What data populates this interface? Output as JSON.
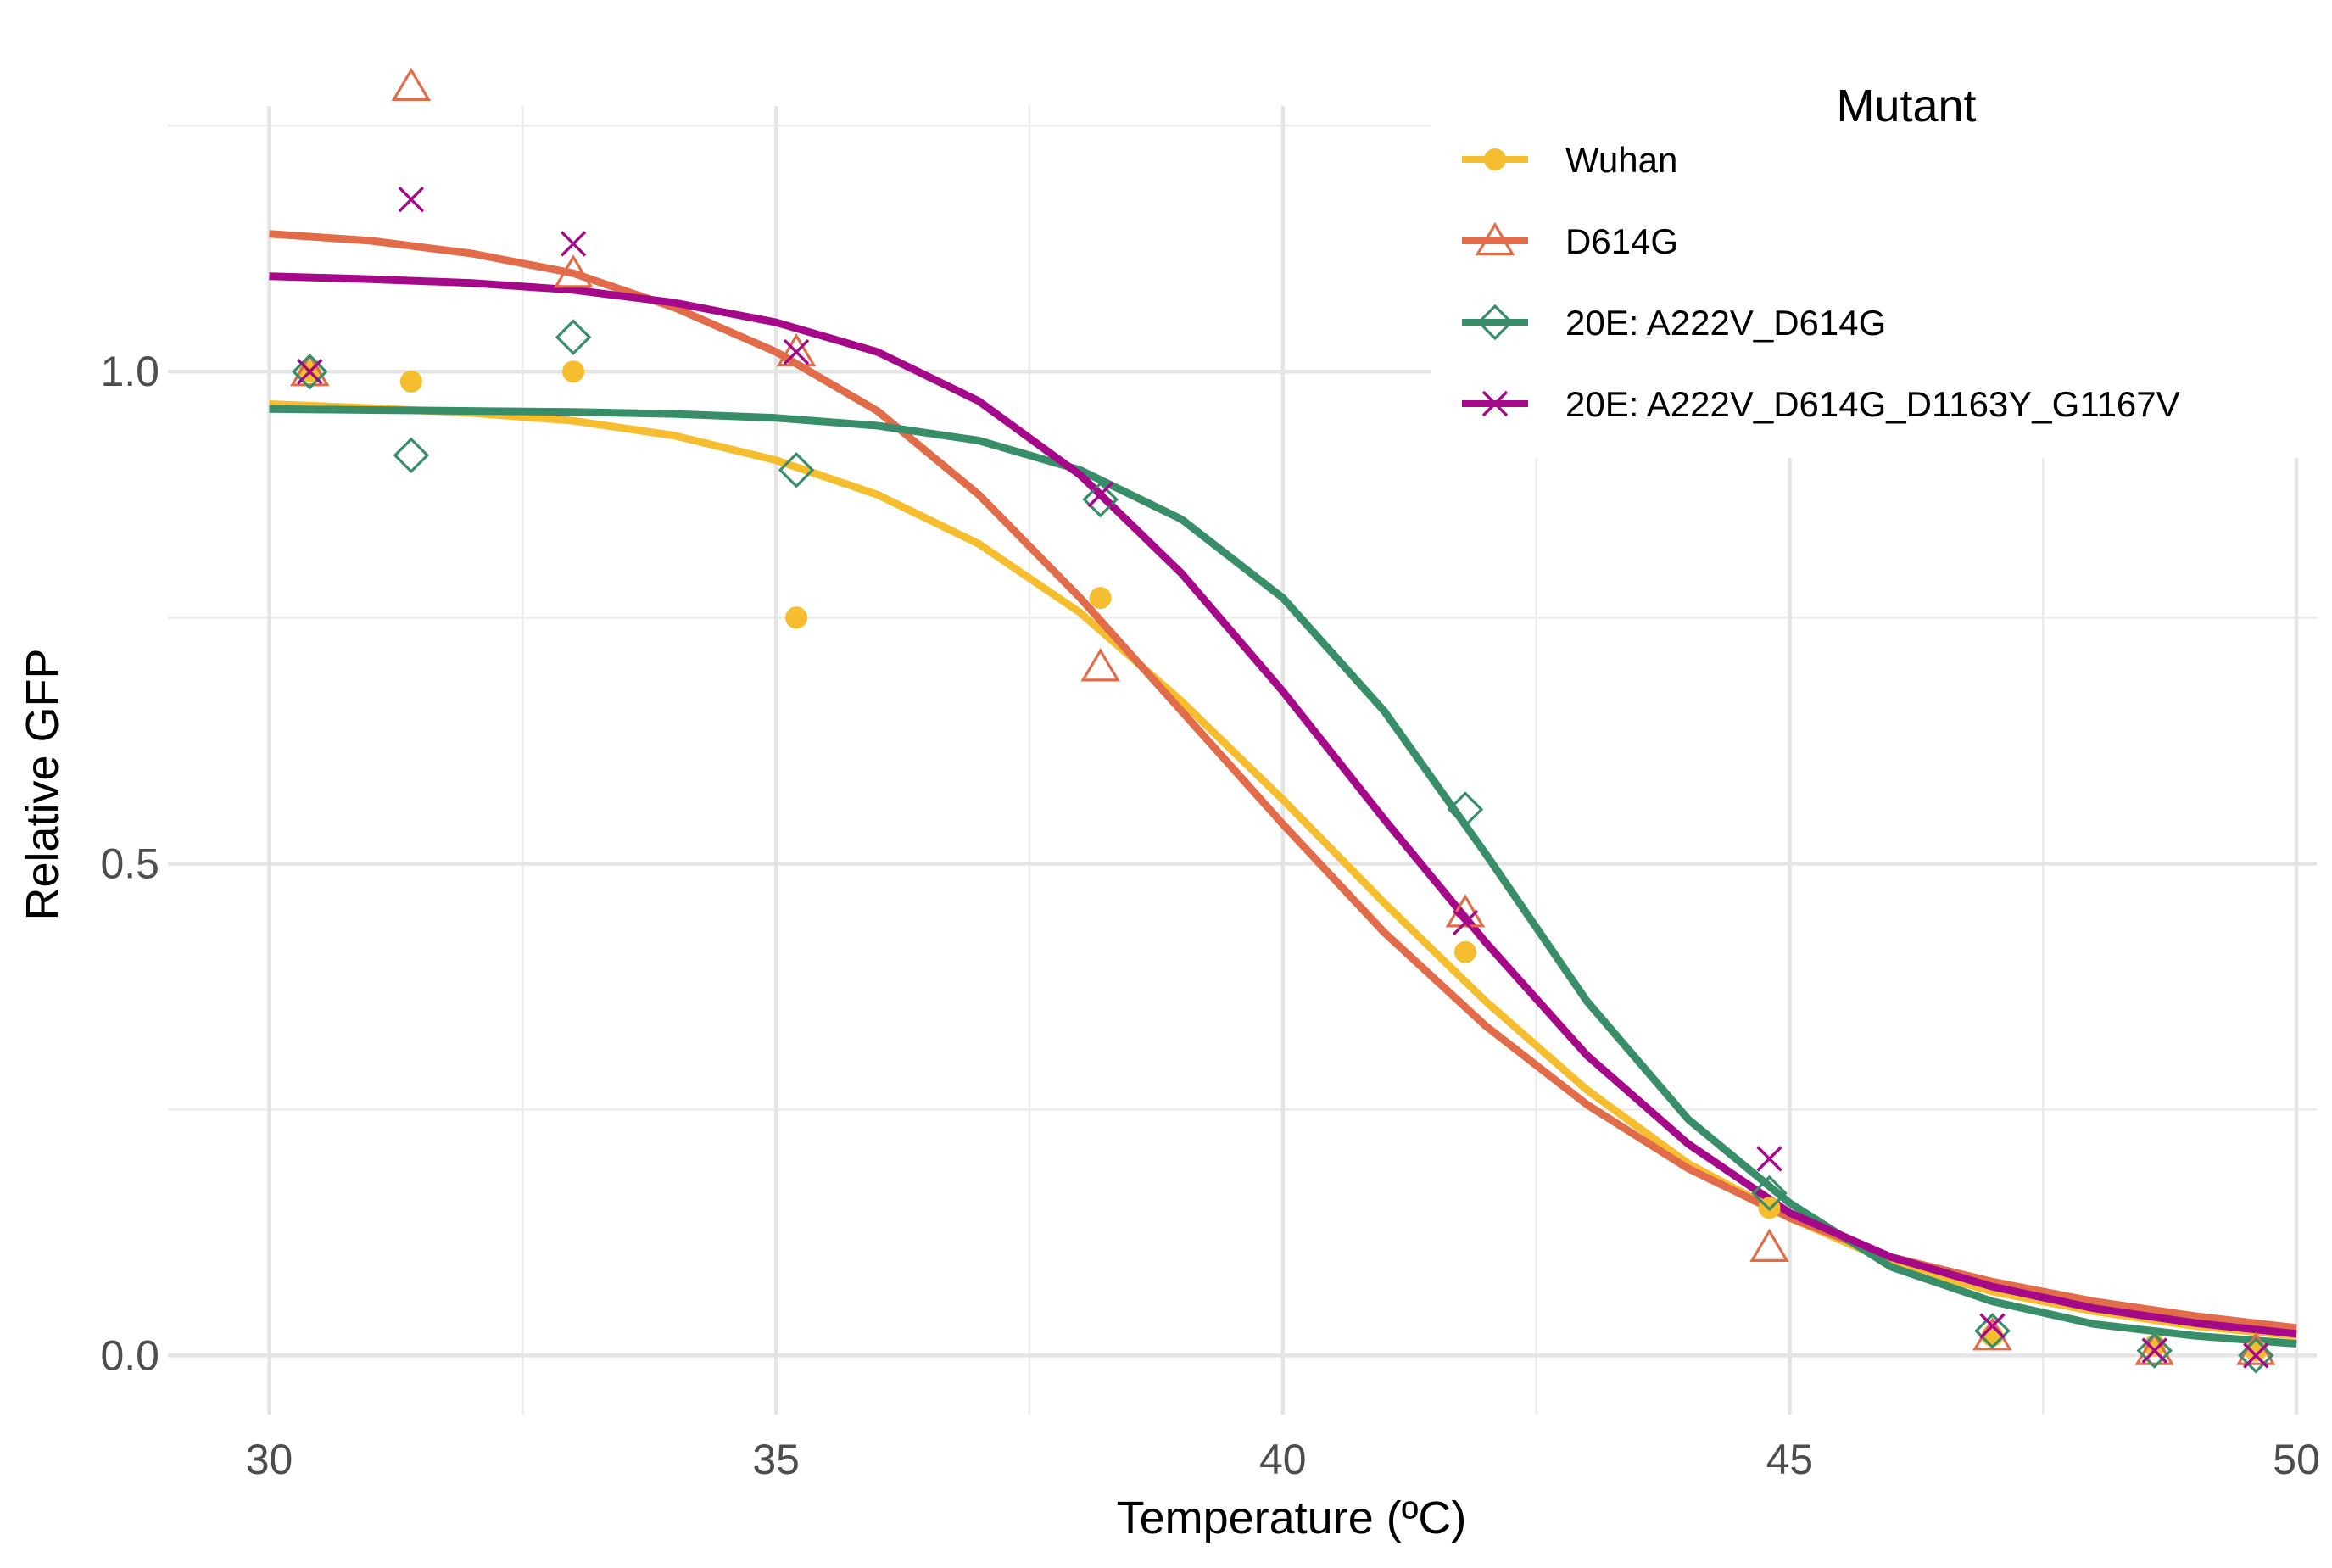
{
  "chart_data": {
    "type": "scatter",
    "xlabel": "Temperature (ºC)",
    "ylabel": "Relative GFP",
    "xlim": [
      29,
      50.2
    ],
    "ylim": [
      -0.06,
      1.27
    ],
    "x_ticks": [
      30,
      35,
      40,
      45,
      50
    ],
    "x_tick_labels": [
      "30",
      "35",
      "40",
      "45",
      "50"
    ],
    "x_minor_ticks": [
      32.5,
      37.5,
      42.5,
      47.5
    ],
    "y_ticks": [
      0,
      0.5,
      1.0
    ],
    "y_tick_labels": [
      "0.0",
      "0.5",
      "1.0"
    ],
    "y_minor_ticks": [
      0.25,
      0.75,
      1.25
    ],
    "grid": true,
    "legend_title": "Mutant",
    "legend_position": "top-right",
    "series": [
      {
        "name": "Wuhan",
        "color": "#F6BE2E",
        "marker": "filled-circle",
        "points": [
          [
            30.4,
            1.0
          ],
          [
            31.4,
            0.99
          ],
          [
            33.0,
            1.0
          ],
          [
            35.2,
            0.75
          ],
          [
            38.2,
            0.77
          ],
          [
            41.8,
            0.41
          ],
          [
            44.8,
            0.15
          ],
          [
            47.0,
            0.02
          ],
          [
            48.6,
            0.01
          ],
          [
            49.6,
            0.005
          ]
        ],
        "fit": [
          [
            30,
            0.967
          ],
          [
            31,
            0.963
          ],
          [
            32,
            0.958
          ],
          [
            33,
            0.95
          ],
          [
            34,
            0.935
          ],
          [
            35,
            0.91
          ],
          [
            36,
            0.875
          ],
          [
            37,
            0.825
          ],
          [
            38,
            0.755
          ],
          [
            39,
            0.665
          ],
          [
            40,
            0.565
          ],
          [
            41,
            0.46
          ],
          [
            42,
            0.36
          ],
          [
            43,
            0.27
          ],
          [
            44,
            0.195
          ],
          [
            45,
            0.14
          ],
          [
            46,
            0.095
          ],
          [
            47,
            0.065
          ],
          [
            48,
            0.045
          ],
          [
            49,
            0.03
          ],
          [
            50,
            0.02
          ]
        ]
      },
      {
        "name": "D614G",
        "color": "#E26C49",
        "marker": "open-triangle",
        "points": [
          [
            30.4,
            1.0
          ],
          [
            31.4,
            1.29
          ],
          [
            33.0,
            1.1
          ],
          [
            35.2,
            1.02
          ],
          [
            38.2,
            0.7
          ],
          [
            41.8,
            0.45
          ],
          [
            44.8,
            0.11
          ],
          [
            47.0,
            0.02
          ],
          [
            48.6,
            0.005
          ],
          [
            49.6,
            0.005
          ]
        ],
        "fit": [
          [
            30,
            1.14
          ],
          [
            31,
            1.133
          ],
          [
            32,
            1.12
          ],
          [
            33,
            1.1
          ],
          [
            34,
            1.065
          ],
          [
            35,
            1.02
          ],
          [
            36,
            0.96
          ],
          [
            37,
            0.875
          ],
          [
            38,
            0.77
          ],
          [
            39,
            0.655
          ],
          [
            40,
            0.54
          ],
          [
            41,
            0.43
          ],
          [
            42,
            0.335
          ],
          [
            43,
            0.255
          ],
          [
            44,
            0.19
          ],
          [
            45,
            0.14
          ],
          [
            46,
            0.1
          ],
          [
            47,
            0.075
          ],
          [
            48,
            0.055
          ],
          [
            49,
            0.04
          ],
          [
            50,
            0.028
          ]
        ]
      },
      {
        "name": "20E: A222V_D614G",
        "color": "#398E6A",
        "marker": "open-diamond",
        "points": [
          [
            30.4,
            1.0
          ],
          [
            31.4,
            0.915
          ],
          [
            33.0,
            1.035
          ],
          [
            35.2,
            0.9
          ],
          [
            38.2,
            0.87
          ],
          [
            41.8,
            0.555
          ],
          [
            44.8,
            0.165
          ],
          [
            47.0,
            0.025
          ],
          [
            48.6,
            0.005
          ],
          [
            49.6,
            0.0
          ]
        ],
        "fit": [
          [
            30,
            0.962
          ],
          [
            31,
            0.961
          ],
          [
            32,
            0.96
          ],
          [
            33,
            0.959
          ],
          [
            34,
            0.957
          ],
          [
            35,
            0.953
          ],
          [
            36,
            0.945
          ],
          [
            37,
            0.93
          ],
          [
            38,
            0.9
          ],
          [
            39,
            0.85
          ],
          [
            40,
            0.77
          ],
          [
            41,
            0.655
          ],
          [
            42,
            0.51
          ],
          [
            43,
            0.36
          ],
          [
            44,
            0.24
          ],
          [
            45,
            0.155
          ],
          [
            46,
            0.09
          ],
          [
            47,
            0.055
          ],
          [
            48,
            0.032
          ],
          [
            49,
            0.02
          ],
          [
            50,
            0.012
          ]
        ]
      },
      {
        "name": "20E: A222V_D614G_D1163Y_G1167V",
        "color": "#A6088A",
        "marker": "cross",
        "points": [
          [
            30.4,
            1.0
          ],
          [
            31.4,
            1.175
          ],
          [
            33.0,
            1.13
          ],
          [
            35.2,
            1.02
          ],
          [
            38.2,
            0.875
          ],
          [
            41.8,
            0.44
          ],
          [
            44.8,
            0.2
          ],
          [
            47.0,
            0.03
          ],
          [
            48.6,
            0.005
          ],
          [
            49.6,
            0.0
          ]
        ],
        "fit": [
          [
            30,
            1.097
          ],
          [
            31,
            1.094
          ],
          [
            32,
            1.09
          ],
          [
            33,
            1.083
          ],
          [
            34,
            1.07
          ],
          [
            35,
            1.05
          ],
          [
            36,
            1.02
          ],
          [
            37,
            0.97
          ],
          [
            38,
            0.895
          ],
          [
            39,
            0.795
          ],
          [
            40,
            0.675
          ],
          [
            41,
            0.545
          ],
          [
            42,
            0.42
          ],
          [
            43,
            0.305
          ],
          [
            44,
            0.215
          ],
          [
            45,
            0.145
          ],
          [
            46,
            0.1
          ],
          [
            47,
            0.07
          ],
          [
            48,
            0.048
          ],
          [
            49,
            0.033
          ],
          [
            50,
            0.022
          ]
        ]
      }
    ]
  }
}
